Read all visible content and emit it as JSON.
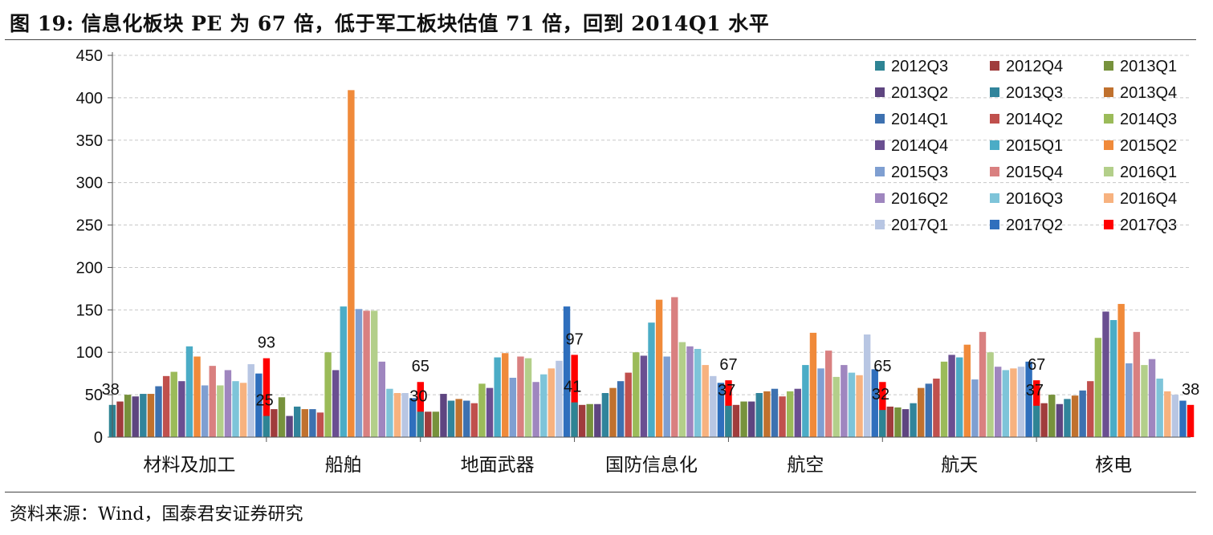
{
  "title": "图 19: 信息化板块 PE 为 67 倍，低于军工板块估值 71 倍，回到 2014Q1 水平",
  "source": "资料来源：Wind，国泰君安证券研究",
  "chart_data": {
    "type": "bar",
    "title": "",
    "xlabel": "",
    "ylabel": "",
    "ylim": [
      0,
      450
    ],
    "yticks": [
      0,
      50,
      100,
      150,
      200,
      250,
      300,
      350,
      400,
      450
    ],
    "grid": true,
    "legend_position": "top-right",
    "categories": [
      "材料及加工",
      "船舶",
      "地面武器",
      "国防信息化",
      "航空",
      "航天",
      "核电"
    ],
    "series": [
      {
        "name": "2012Q3",
        "color": "#2e8494",
        "values": [
          38,
          25,
          30,
          41,
          37,
          32,
          37
        ]
      },
      {
        "name": "2012Q4",
        "color": "#a03c3c",
        "values": [
          42,
          33,
          30,
          38,
          38,
          36,
          40
        ]
      },
      {
        "name": "2013Q1",
        "color": "#77923c",
        "values": [
          50,
          47,
          30,
          39,
          42,
          35,
          50
        ]
      },
      {
        "name": "2013Q2",
        "color": "#5e4580",
        "values": [
          48,
          25,
          51,
          39,
          42,
          33,
          39
        ]
      },
      {
        "name": "2013Q3",
        "color": "#31849b",
        "values": [
          51,
          36,
          43,
          52,
          52,
          40,
          45
        ]
      },
      {
        "name": "2013Q4",
        "color": "#c0712e",
        "values": [
          51,
          33,
          45,
          58,
          54,
          58,
          49
        ]
      },
      {
        "name": "2014Q1",
        "color": "#3d71b0",
        "values": [
          60,
          33,
          43,
          66,
          57,
          63,
          55
        ]
      },
      {
        "name": "2014Q2",
        "color": "#c0504d",
        "values": [
          72,
          29,
          40,
          76,
          48,
          69,
          66
        ]
      },
      {
        "name": "2014Q3",
        "color": "#9bbb59",
        "values": [
          77,
          100,
          63,
          100,
          54,
          89,
          117
        ]
      },
      {
        "name": "2014Q4",
        "color": "#6a4f91",
        "values": [
          66,
          79,
          58,
          96,
          57,
          97,
          148
        ]
      },
      {
        "name": "2015Q1",
        "color": "#4bacc6",
        "values": [
          107,
          154,
          94,
          135,
          85,
          94,
          138
        ]
      },
      {
        "name": "2015Q2",
        "color": "#f08a3a",
        "values": [
          95,
          409,
          99,
          162,
          123,
          109,
          157
        ]
      },
      {
        "name": "2015Q3",
        "color": "#7f9fd1",
        "values": [
          61,
          151,
          70,
          95,
          81,
          68,
          87
        ]
      },
      {
        "name": "2015Q4",
        "color": "#d98080",
        "values": [
          84,
          149,
          95,
          165,
          102,
          124,
          124
        ]
      },
      {
        "name": "2016Q1",
        "color": "#b3cf8a",
        "values": [
          61,
          149,
          93,
          112,
          71,
          100,
          85
        ]
      },
      {
        "name": "2016Q2",
        "color": "#9f86bf",
        "values": [
          79,
          89,
          65,
          107,
          85,
          83,
          92
        ]
      },
      {
        "name": "2016Q3",
        "color": "#7ec4d9",
        "values": [
          66,
          57,
          74,
          104,
          76,
          79,
          69
        ]
      },
      {
        "name": "2016Q4",
        "color": "#f7b27f",
        "values": [
          64,
          52,
          81,
          85,
          73,
          81,
          54
        ]
      },
      {
        "name": "2017Q1",
        "color": "#b8c6e3",
        "values": [
          86,
          52,
          90,
          72,
          121,
          83,
          50
        ]
      },
      {
        "name": "2017Q2",
        "color": "#2f6fbd",
        "values": [
          75,
          46,
          154,
          64,
          80,
          89,
          43
        ]
      },
      {
        "name": "2017Q3",
        "color": "#ff0000",
        "values": [
          93,
          65,
          97,
          67,
          65,
          67,
          38
        ]
      }
    ],
    "annotations": [
      {
        "category": "材料及加工",
        "series": "2012Q3",
        "label": "38"
      },
      {
        "category": "材料及加工",
        "series": "2017Q3",
        "label": "93"
      },
      {
        "category": "船舶",
        "series": "2012Q3",
        "label": "25"
      },
      {
        "category": "船舶",
        "series": "2017Q3",
        "label": "65"
      },
      {
        "category": "地面武器",
        "series": "2012Q3",
        "label": "30"
      },
      {
        "category": "地面武器",
        "series": "2017Q3",
        "label": "97"
      },
      {
        "category": "国防信息化",
        "series": "2012Q3",
        "label": "41"
      },
      {
        "category": "国防信息化",
        "series": "2017Q3",
        "label": "67"
      },
      {
        "category": "航空",
        "series": "2012Q3",
        "label": "37"
      },
      {
        "category": "航空",
        "series": "2017Q3",
        "label": "65"
      },
      {
        "category": "航天",
        "series": "2012Q3",
        "label": "32"
      },
      {
        "category": "航天",
        "series": "2017Q3",
        "label": "67"
      },
      {
        "category": "核电",
        "series": "2012Q3",
        "label": "37"
      },
      {
        "category": "核电",
        "series": "2017Q3",
        "label": "38"
      }
    ]
  }
}
